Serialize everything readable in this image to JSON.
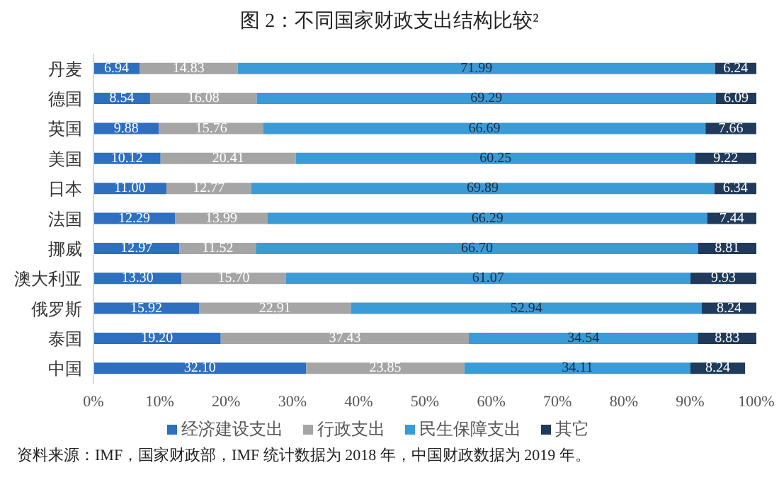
{
  "chart_data": {
    "type": "bar",
    "orientation": "horizontal",
    "stacked": true,
    "title": "图 2：不同国家财政支出结构比较²",
    "categories": [
      "丹麦",
      "德国",
      "英国",
      "美国",
      "日本",
      "法国",
      "挪威",
      "澳大利亚",
      "俄罗斯",
      "泰国",
      "中国"
    ],
    "series": [
      {
        "name": "经济建设支出",
        "color": "#2e6fbf",
        "values": [
          6.94,
          8.54,
          9.88,
          10.12,
          11.0,
          12.29,
          12.97,
          13.3,
          15.92,
          19.2,
          32.1
        ],
        "value_labels": [
          "6.94",
          "8.54",
          "9.88",
          "10.12",
          "11.00",
          "12.29",
          "12.97",
          "13.30",
          "15.92",
          "19.20",
          "32.10"
        ]
      },
      {
        "name": "行政支出",
        "color": "#a5a5a5",
        "values": [
          14.83,
          16.08,
          15.76,
          20.41,
          12.77,
          13.99,
          11.52,
          15.7,
          22.91,
          37.43,
          23.85
        ],
        "value_labels": [
          "14.83",
          "16.08",
          "15.76",
          "20.41",
          "12.77",
          "13.99",
          "11.52",
          "15.70",
          "22.91",
          "37.43",
          "23.85"
        ]
      },
      {
        "name": "民生保障支出",
        "color": "#3b9bd6",
        "values": [
          71.99,
          69.29,
          66.69,
          60.25,
          69.89,
          66.29,
          66.7,
          61.07,
          52.94,
          34.54,
          34.11
        ],
        "value_labels": [
          "71.99",
          "69.29",
          "66.69",
          "60.25",
          "69.89",
          "66.29",
          "66.70",
          "61.07",
          "52.94",
          "34.54",
          "34.11"
        ]
      },
      {
        "name": "其它",
        "color": "#1f3a5a",
        "values": [
          6.24,
          6.09,
          7.66,
          9.22,
          6.34,
          7.44,
          8.81,
          9.93,
          8.24,
          8.83,
          8.24
        ],
        "value_labels": [
          "6.24",
          "6.09",
          "7.66",
          "9.22",
          "6.34",
          "7.44",
          "8.81",
          "9.93",
          "8.24",
          "8.83",
          "8.24"
        ]
      }
    ],
    "xlim": [
      0,
      100
    ],
    "xticks": [
      {
        "value": 0,
        "label": "0%"
      },
      {
        "value": 10,
        "label": "10%"
      },
      {
        "value": 20,
        "label": "20%"
      },
      {
        "value": 30,
        "label": "30%"
      },
      {
        "value": 40,
        "label": "40%"
      },
      {
        "value": 50,
        "label": "50%"
      },
      {
        "value": 60,
        "label": "60%"
      },
      {
        "value": 70,
        "label": "70%"
      },
      {
        "value": 80,
        "label": "80%"
      },
      {
        "value": 90,
        "label": "90%"
      },
      {
        "value": 100,
        "label": "100%"
      }
    ],
    "legend": "bottom",
    "grid": false,
    "annotations": [
      "资料来源：IMF，国家财政部，IMF 统计数据为 2018 年，中国财政数据为 2019 年。"
    ]
  }
}
